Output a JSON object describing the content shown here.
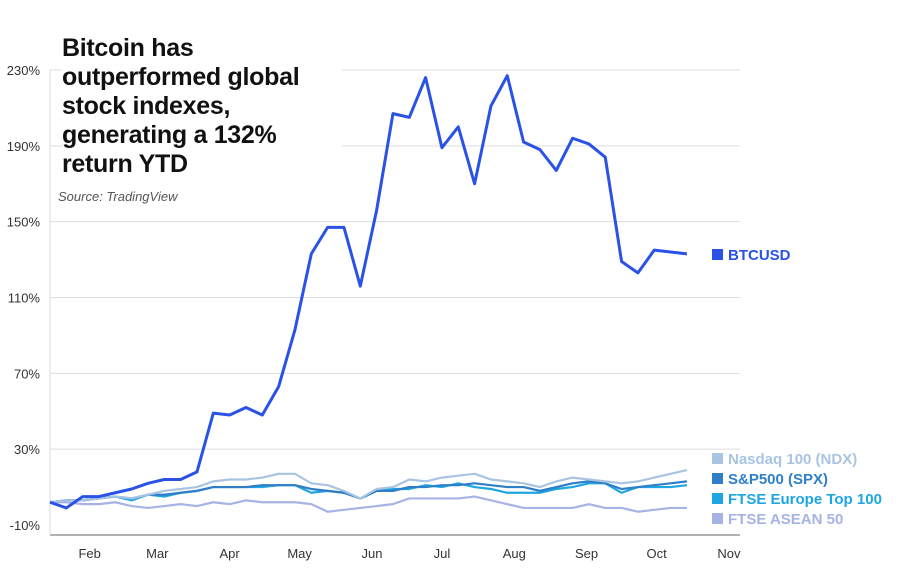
{
  "chart_data": {
    "type": "line",
    "title": "Bitcoin has outperformed global stock indexes, generating a 132% return YTD",
    "source": "Source: TradingView",
    "xlabel": "",
    "ylabel": "",
    "ylim": [
      -10,
      230
    ],
    "y_ticks": [
      "230%",
      "190%",
      "150%",
      "110%",
      "70%",
      "30%",
      "-10%"
    ],
    "y_tick_values": [
      230,
      190,
      150,
      110,
      70,
      30,
      -10
    ],
    "x_ticks": [
      "Feb",
      "Mar",
      "Apr",
      "May",
      "Jun",
      "Jul",
      "Aug",
      "Sep",
      "Oct",
      "Nov"
    ],
    "x_tick_dates": [
      "2020-02-01",
      "2020-03-01",
      "2020-04-01",
      "2020-05-01",
      "2020-06-01",
      "2020-07-01",
      "2020-08-01",
      "2020-09-01",
      "2020-10-01",
      "2020-11-01"
    ],
    "x_start": "2020-01-15",
    "x_step_days": 7,
    "grid": true,
    "legend": "right",
    "series": [
      {
        "name": "BTCUSD",
        "color": "#2a52e6",
        "values": [
          2,
          -1,
          5,
          5,
          7,
          9,
          12,
          14,
          14,
          18,
          49,
          48,
          52,
          48,
          63,
          93,
          133,
          147,
          147,
          116,
          156,
          207,
          205,
          226,
          189,
          200,
          170,
          211,
          227,
          192,
          188,
          177,
          194,
          191,
          184,
          129,
          123,
          135,
          134,
          133
        ]
      },
      {
        "name": "Nasdaq 100 (NDX)",
        "color": "#a9c4e2",
        "values": [
          2,
          3,
          3,
          4,
          5,
          4,
          6,
          8,
          9,
          10,
          13,
          14,
          14,
          15,
          17,
          17,
          12,
          11,
          8,
          4,
          9,
          10,
          14,
          13,
          15,
          16,
          17,
          14,
          13,
          12,
          10,
          13,
          15,
          14,
          13,
          12,
          13,
          15,
          17,
          19
        ]
      },
      {
        "name": "S&P500 (SPX)",
        "color": "#2f7fc8",
        "values": [
          2,
          3,
          3,
          4,
          5,
          4,
          6,
          6,
          7,
          8,
          10,
          10,
          10,
          11,
          11,
          11,
          9,
          8,
          7,
          4,
          8,
          8,
          10,
          10,
          11,
          11,
          12,
          11,
          10,
          10,
          8,
          10,
          12,
          13,
          12,
          9,
          10,
          11,
          12,
          13
        ]
      },
      {
        "name": "FTSE Europe Top 100",
        "color": "#1ea6e2",
        "values": [
          2,
          3,
          3,
          4,
          5,
          3,
          6,
          5,
          7,
          8,
          10,
          10,
          10,
          10,
          11,
          11,
          7,
          8,
          7,
          4,
          8,
          9,
          9,
          11,
          10,
          12,
          10,
          9,
          7,
          7,
          7,
          9,
          10,
          12,
          12,
          7,
          10,
          10,
          10,
          11
        ]
      },
      {
        "name": "FTSE ASEAN 50",
        "color": "#a7b3e4",
        "values": [
          2,
          2,
          1,
          1,
          2,
          0,
          -1,
          0,
          1,
          0,
          2,
          1,
          3,
          2,
          2,
          2,
          1,
          -3,
          -2,
          -1,
          0,
          1,
          4,
          4,
          4,
          4,
          5,
          3,
          1,
          -1,
          -1,
          -1,
          -1,
          1,
          -1,
          -1,
          -3,
          -2,
          -1,
          -1
        ]
      }
    ]
  }
}
